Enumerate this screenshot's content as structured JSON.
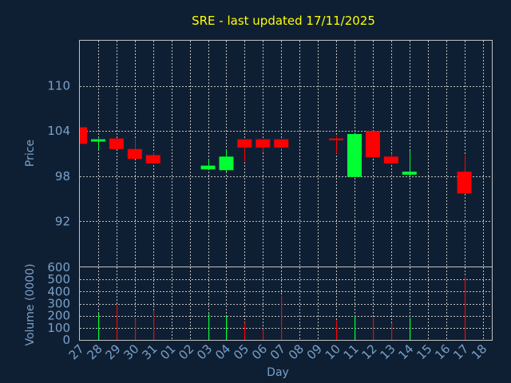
{
  "chart_data": [
    {
      "type": "candlestick",
      "title": "SRE - last updated 17/11/2025",
      "ylabel": "Price",
      "xlabel": "",
      "ylim": [
        86,
        116
      ],
      "yticks": [
        92,
        98,
        104,
        110
      ],
      "grid": true,
      "colors": {
        "up": "#00ff33",
        "down": "#ff0000",
        "title": "#ffff00",
        "axis_text": "#7aa0c8",
        "grid": "#c0c0c0",
        "background": "#0f1f33"
      },
      "candles": [
        {
          "day": "27",
          "open": 104.5,
          "high": 104.5,
          "low": 102.3,
          "close": 102.3
        },
        {
          "day": "28",
          "open": 102.6,
          "high": 103.0,
          "low": 101.5,
          "close": 102.9
        },
        {
          "day": "29",
          "open": 103.0,
          "high": 103.0,
          "low": 101.6,
          "close": 101.6
        },
        {
          "day": "30",
          "open": 101.6,
          "high": 103.0,
          "low": 100.3,
          "close": 100.3
        },
        {
          "day": "31",
          "open": 100.8,
          "high": 101.2,
          "low": 99.6,
          "close": 99.7
        },
        {
          "day": "03",
          "open": 98.9,
          "high": 100.2,
          "low": 98.9,
          "close": 99.4
        },
        {
          "day": "04",
          "open": 98.8,
          "high": 101.5,
          "low": 98.6,
          "close": 100.6
        },
        {
          "day": "05",
          "open": 102.9,
          "high": 102.9,
          "low": 100.0,
          "close": 101.8
        },
        {
          "day": "06",
          "open": 102.9,
          "high": 102.9,
          "low": 101.2,
          "close": 101.8
        },
        {
          "day": "07",
          "open": 102.9,
          "high": 102.9,
          "low": 101.5,
          "close": 101.8
        },
        {
          "day": "10",
          "open": 103.0,
          "high": 103.3,
          "low": 101.0,
          "close": 102.8
        },
        {
          "day": "11",
          "open": 97.9,
          "high": 103.8,
          "low": 97.9,
          "close": 103.6
        },
        {
          "day": "12",
          "open": 104.0,
          "high": 104.0,
          "low": 100.4,
          "close": 100.5
        },
        {
          "day": "13",
          "open": 100.6,
          "high": 101.0,
          "low": 99.6,
          "close": 99.7
        },
        {
          "day": "14",
          "open": 98.2,
          "high": 101.4,
          "low": 98.1,
          "close": 98.6
        },
        {
          "day": "17",
          "open": 98.6,
          "high": 100.8,
          "low": 95.7,
          "close": 95.7
        }
      ]
    },
    {
      "type": "bar",
      "ylabel": "Volume (0000)",
      "xlabel": "Day",
      "ylim": [
        0,
        600
      ],
      "yticks": [
        0,
        100,
        200,
        300,
        400,
        500,
        600
      ],
      "categories": [
        "27",
        "28",
        "29",
        "30",
        "31",
        "01",
        "02",
        "03",
        "04",
        "05",
        "06",
        "07",
        "08",
        "09",
        "10",
        "11",
        "12",
        "13",
        "14",
        "15",
        "16",
        "17",
        "18"
      ],
      "volumes": [
        {
          "day": "28",
          "value": 220,
          "dir": "up"
        },
        {
          "day": "29",
          "value": 290,
          "dir": "down"
        },
        {
          "day": "30",
          "value": 175,
          "dir": "down"
        },
        {
          "day": "31",
          "value": 240,
          "dir": "down"
        },
        {
          "day": "03",
          "value": 215,
          "dir": "up"
        },
        {
          "day": "04",
          "value": 195,
          "dir": "up"
        },
        {
          "day": "05",
          "value": 145,
          "dir": "down"
        },
        {
          "day": "06",
          "value": 90,
          "dir": "down"
        },
        {
          "day": "07",
          "value": 365,
          "dir": "down"
        },
        {
          "day": "10",
          "value": 160,
          "dir": "down"
        },
        {
          "day": "11",
          "value": 205,
          "dir": "up"
        },
        {
          "day": "12",
          "value": 185,
          "dir": "down"
        },
        {
          "day": "13",
          "value": 140,
          "dir": "down"
        },
        {
          "day": "14",
          "value": 185,
          "dir": "up"
        },
        {
          "day": "17",
          "value": 520,
          "dir": "down"
        }
      ]
    }
  ]
}
